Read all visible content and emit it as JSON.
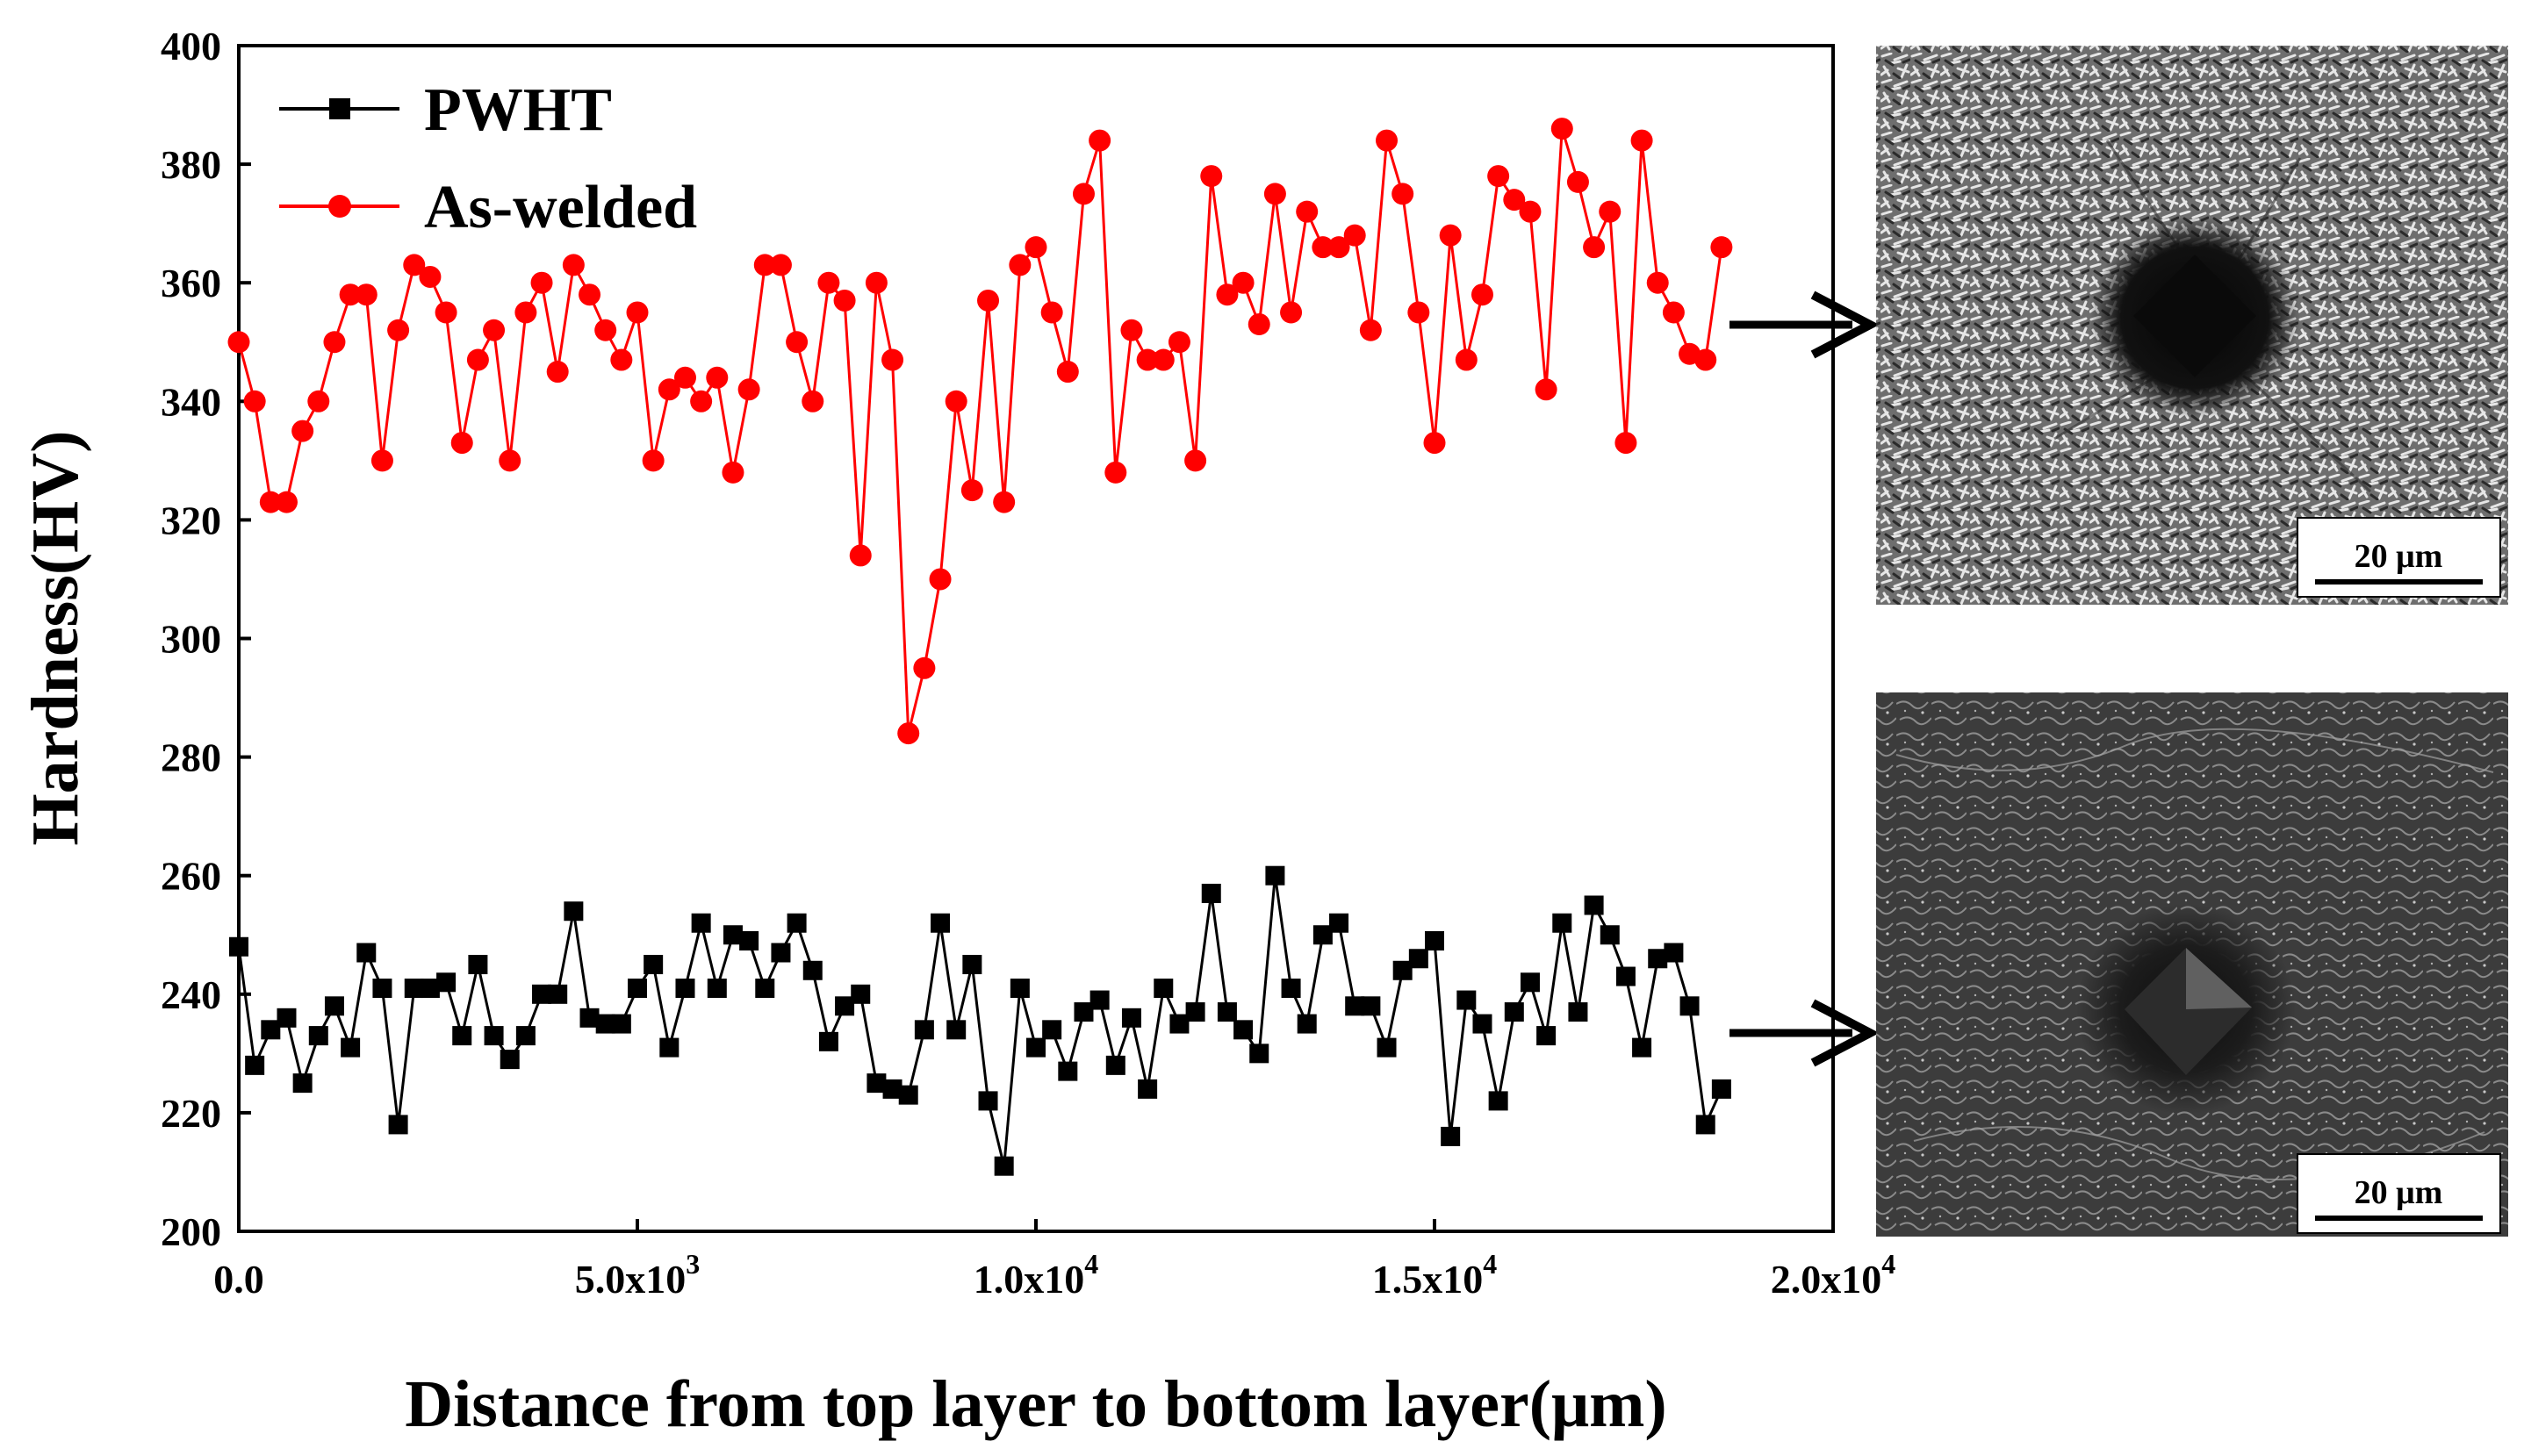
{
  "chart_data": {
    "type": "line",
    "title": "",
    "xlabel": "Distance from top layer to bottom layer(μm)",
    "ylabel": "Hardness(HV)",
    "xlim": [
      0,
      20000
    ],
    "ylim": [
      200,
      400
    ],
    "x_ticks": [
      {
        "value": 0,
        "label": "0.0"
      },
      {
        "value": 5000,
        "label": "5.0x10",
        "exp": "3"
      },
      {
        "value": 10000,
        "label": "1.0x10",
        "exp": "4"
      },
      {
        "value": 15000,
        "label": "1.5x10",
        "exp": "4"
      },
      {
        "value": 20000,
        "label": "2.0x10",
        "exp": "4"
      }
    ],
    "y_ticks": [
      200,
      220,
      240,
      260,
      280,
      300,
      320,
      340,
      360,
      380,
      400
    ],
    "legend_position": "top-left",
    "series": [
      {
        "name": "PWHT",
        "color": "#000000",
        "marker": "square",
        "x": [
          0,
          200,
          400,
          600,
          800,
          1000,
          1200,
          1400,
          1600,
          1800,
          2000,
          2200,
          2400,
          2600,
          2800,
          3000,
          3200,
          3400,
          3600,
          3800,
          4000,
          4200,
          4400,
          4600,
          4800,
          5000,
          5200,
          5400,
          5600,
          5800,
          6000,
          6200,
          6400,
          6600,
          6800,
          7000,
          7200,
          7400,
          7600,
          7800,
          8000,
          8200,
          8400,
          8600,
          8800,
          9000,
          9200,
          9400,
          9600,
          9800,
          10000,
          10200,
          10400,
          10600,
          10800,
          11000,
          11200,
          11400,
          11600,
          11800,
          12000,
          12200,
          12400,
          12600,
          12800,
          13000,
          13200,
          13400,
          13600,
          13800,
          14000,
          14200,
          14400,
          14600,
          14800,
          15000,
          15200,
          15400,
          15600,
          15800,
          16000,
          16200,
          16400,
          16600,
          16800,
          17000,
          17200,
          17400,
          17600,
          17800,
          18000,
          18200,
          18400,
          18600
        ],
        "values": [
          248,
          228,
          234,
          236,
          225,
          233,
          238,
          231,
          247,
          241,
          218,
          241,
          241,
          242,
          233,
          245,
          233,
          229,
          233,
          240,
          240,
          254,
          236,
          235,
          235,
          241,
          245,
          231,
          241,
          252,
          241,
          250,
          249,
          241,
          247,
          252,
          244,
          232,
          238,
          240,
          225,
          224,
          223,
          234,
          252,
          234,
          245,
          222,
          211,
          241,
          231,
          234,
          227,
          237,
          239,
          228,
          236,
          224,
          241,
          235,
          237,
          257,
          237,
          234,
          230,
          260,
          241,
          235,
          250,
          252,
          238,
          238,
          231,
          244,
          246,
          249,
          216,
          239,
          235,
          222,
          237,
          242,
          233,
          252,
          237,
          255,
          250,
          243,
          231,
          246,
          247,
          238,
          218,
          224
        ]
      },
      {
        "name": "As-welded",
        "color": "#ff0000",
        "marker": "circle",
        "x": [
          0,
          200,
          400,
          600,
          800,
          1000,
          1200,
          1400,
          1600,
          1800,
          2000,
          2200,
          2400,
          2600,
          2800,
          3000,
          3200,
          3400,
          3600,
          3800,
          4000,
          4200,
          4400,
          4600,
          4800,
          5000,
          5200,
          5400,
          5600,
          5800,
          6000,
          6200,
          6400,
          6600,
          6800,
          7000,
          7200,
          7400,
          7600,
          7800,
          8000,
          8200,
          8400,
          8600,
          8800,
          9000,
          9200,
          9400,
          9600,
          9800,
          10000,
          10200,
          10400,
          10600,
          10800,
          11000,
          11200,
          11400,
          11600,
          11800,
          12000,
          12200,
          12400,
          12600,
          12800,
          13000,
          13200,
          13400,
          13600,
          13800,
          14000,
          14200,
          14400,
          14600,
          14800,
          15000,
          15200,
          15400,
          15600,
          15800,
          16000,
          16200,
          16400,
          16600,
          16800,
          17000,
          17200,
          17400,
          17600,
          17800,
          18000,
          18200,
          18400,
          18600
        ],
        "values": [
          350,
          340,
          323,
          323,
          335,
          340,
          350,
          358,
          358,
          330,
          352,
          363,
          361,
          355,
          333,
          347,
          352,
          330,
          355,
          360,
          345,
          363,
          358,
          352,
          347,
          355,
          330,
          342,
          344,
          340,
          344,
          328,
          342,
          363,
          363,
          350,
          340,
          360,
          357,
          314,
          360,
          347,
          284,
          295,
          310,
          340,
          325,
          357,
          323,
          363,
          366,
          355,
          345,
          375,
          384,
          328,
          352,
          347,
          347,
          350,
          330,
          378,
          358,
          360,
          353,
          375,
          355,
          372,
          366,
          366,
          368,
          352,
          384,
          375,
          355,
          333,
          368,
          347,
          358,
          378,
          374,
          372,
          342,
          386,
          377,
          366,
          372,
          333,
          384,
          360,
          355,
          348,
          347,
          366
        ]
      }
    ],
    "micrographs": [
      {
        "series": "As-welded",
        "scale_bar": "20 μm"
      },
      {
        "series": "PWHT",
        "scale_bar": "20 μm"
      }
    ]
  }
}
